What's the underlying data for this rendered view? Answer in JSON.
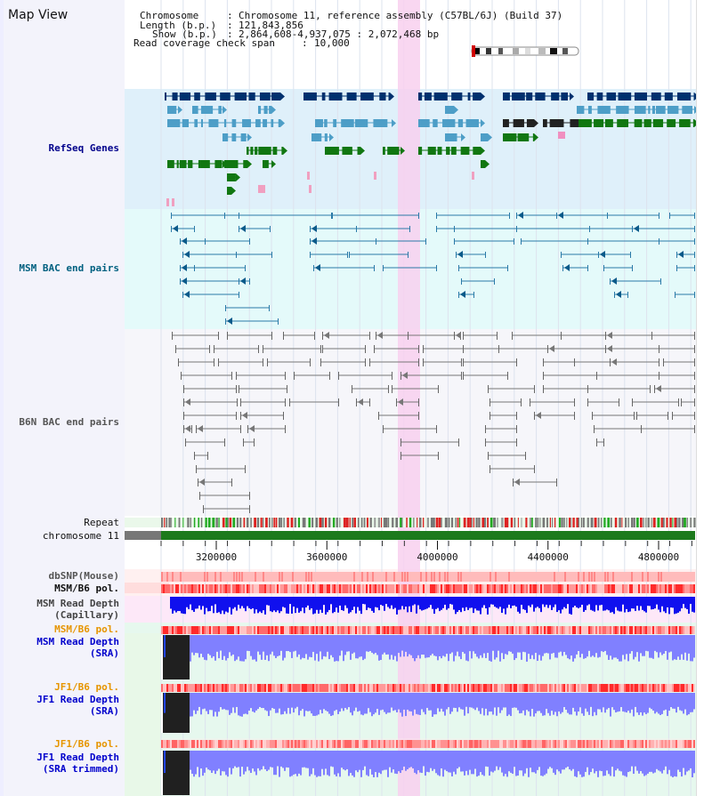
{
  "view": {
    "title": "Map View",
    "chromosome_key": "Chromosome",
    "chromosome_value": "Chromosome 11, reference assembly (C57BL/6J) (Build 37)",
    "length_key": "Length (b.p.)",
    "length_value": "121,843,856",
    "show_key": "Show (b.p.)",
    "show_value": "2,864,608-4,937,075 : 2,072,468 bp",
    "coverage_key": "Read coverage check span",
    "coverage_value": "10,000",
    "sep": ":"
  },
  "tracks": [
    {
      "label": "RefSeq Genes",
      "color": "#00008b"
    },
    {
      "label": "MSM BAC end pairs",
      "color": "#006080"
    },
    {
      "label": "B6N BAC end pairs",
      "color": "#555555"
    },
    {
      "label": "Repeat",
      "color": "#111111"
    },
    {
      "label": "chromosome 11",
      "color": "#111111"
    },
    {
      "label": "dbSNP(Mouse)",
      "color": "#555555"
    },
    {
      "label": "MSM/B6 pol.",
      "color": "#111111"
    },
    {
      "label": "MSM Read Depth",
      "label2": "(Capillary)",
      "color": "#444444"
    },
    {
      "label": "MSM/B6 pol.",
      "color": "#e69500"
    },
    {
      "label": "MSM Read Depth",
      "label2": "(SRA)",
      "color": "#0000cc"
    },
    {
      "label": "JF1/B6 pol.",
      "color": "#e69500"
    },
    {
      "label": "JF1 Read Depth",
      "label2": "(SRA)",
      "color": "#0000cc"
    },
    {
      "label": "JF1/B6 pol.",
      "color": "#e69500"
    },
    {
      "label": "JF1 Read Depth",
      "label2": "(SRA trimmed)",
      "color": "#0000cc"
    }
  ],
  "axis": {
    "ticks": [
      "3200000",
      "3600000",
      "4000000",
      "4400000",
      "4800000"
    ],
    "tick_values": [
      3200000,
      3600000,
      4000000,
      4400000,
      4800000
    ],
    "range": [
      2864608,
      4937075
    ]
  },
  "colors": {
    "refseq_bg": "#dff0fa",
    "msm_bg": "#e4fafa",
    "b6n_bg": "#f6f6fa",
    "highlight": "#f8d0ee",
    "gene_dark": "#00306e",
    "gene_mid": "#4d9ec7",
    "gene_green": "#117711",
    "bac_line": "#2a7aa8",
    "b6n_line": "#777777",
    "chrom_bar": "#1c7a1c",
    "depth_blue": "#1010ee",
    "depth_light": "#8080ff",
    "pol_red": "#ff3030",
    "pol_pink": "#ffb0b0"
  }
}
